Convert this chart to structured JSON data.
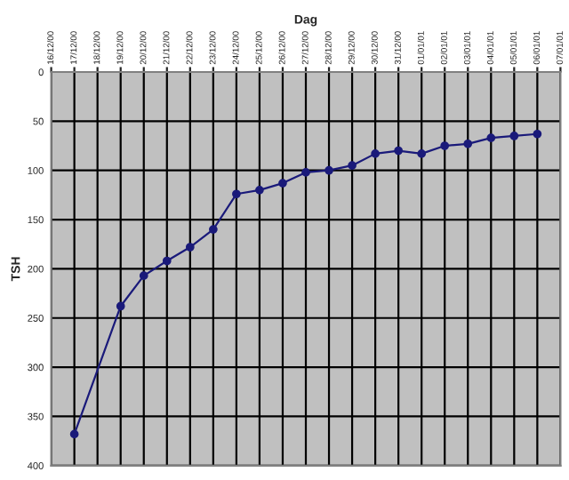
{
  "chart_data": {
    "type": "line",
    "xlabel": "Dag",
    "ylabel": "TSH",
    "x": [
      "2000-12-17",
      "2000-12-19",
      "2000-12-20",
      "2000-12-21",
      "2000-12-22",
      "2000-12-23",
      "2000-12-24",
      "2000-12-25",
      "2000-12-26",
      "2000-12-27",
      "2000-12-28",
      "2000-12-29",
      "2000-12-30",
      "2000-12-31",
      "2001-01-01",
      "2001-01-02",
      "2001-01-03",
      "2001-01-04",
      "2001-01-05",
      "2001-01-06"
    ],
    "series": [
      {
        "color": "#1a1a7a",
        "values": [
          368,
          238,
          207,
          192,
          178,
          160,
          124,
          120,
          113,
          102,
          100,
          95,
          83,
          80,
          83,
          75,
          73,
          67,
          65,
          63
        ]
      }
    ],
    "xlim": [
      "2000-12-16",
      "2001-01-07"
    ],
    "xticks": [
      {
        "value": "2000-12-16",
        "label": "16/12/00"
      },
      {
        "value": "2000-12-17",
        "label": "17/12/00"
      },
      {
        "value": "2000-12-18",
        "label": "18/12/00"
      },
      {
        "value": "2000-12-19",
        "label": "19/12/00"
      },
      {
        "value": "2000-12-20",
        "label": "20/12/00"
      },
      {
        "value": "2000-12-21",
        "label": "21/12/00"
      },
      {
        "value": "2000-12-22",
        "label": "22/12/00"
      },
      {
        "value": "2000-12-23",
        "label": "23/12/00"
      },
      {
        "value": "2000-12-24",
        "label": "24/12/00"
      },
      {
        "value": "2000-12-25",
        "label": "25/12/00"
      },
      {
        "value": "2000-12-26",
        "label": "26/12/00"
      },
      {
        "value": "2000-12-27",
        "label": "27/12/00"
      },
      {
        "value": "2000-12-28",
        "label": "28/12/00"
      },
      {
        "value": "2000-12-29",
        "label": "29/12/00"
      },
      {
        "value": "2000-12-30",
        "label": "30/12/00"
      },
      {
        "value": "2000-12-31",
        "label": "31/12/00"
      },
      {
        "value": "2001-01-01",
        "label": "01/01/01"
      },
      {
        "value": "2001-01-02",
        "label": "02/01/01"
      },
      {
        "value": "2001-01-03",
        "label": "03/01/01"
      },
      {
        "value": "2001-01-04",
        "label": "04/01/01"
      },
      {
        "value": "2001-01-05",
        "label": "05/01/01"
      },
      {
        "value": "2001-01-06",
        "label": "06/01/01"
      },
      {
        "value": "2001-01-07",
        "label": "07/01/01"
      }
    ],
    "ylim": [
      400,
      0
    ],
    "yticks": [
      0,
      50,
      100,
      150,
      200,
      250,
      300,
      350,
      400
    ],
    "grid": true,
    "marker": "circle",
    "line_style": "solid",
    "legend": false
  }
}
